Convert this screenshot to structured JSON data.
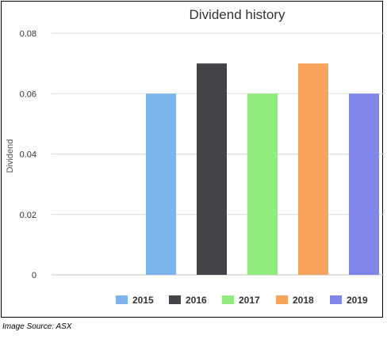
{
  "caption": "Image Source: ASX",
  "chart_data": {
    "type": "bar",
    "title": "Dividend history",
    "xlabel": "",
    "ylabel": "Dividend",
    "categories": [
      "2015",
      "2016",
      "2017",
      "2018",
      "2019"
    ],
    "values": [
      0.06,
      0.07,
      0.06,
      0.07,
      0.06
    ],
    "series": [
      {
        "name": "2015",
        "values": [
          0.06,
          null,
          null,
          null,
          null
        ],
        "color": "#7cb5ec"
      },
      {
        "name": "2016",
        "values": [
          null,
          0.07,
          null,
          null,
          null
        ],
        "color": "#434348"
      },
      {
        "name": "2017",
        "values": [
          null,
          null,
          0.06,
          null,
          null
        ],
        "color": "#90ed7d"
      },
      {
        "name": "2018",
        "values": [
          null,
          null,
          null,
          0.07,
          null
        ],
        "color": "#f7a35c"
      },
      {
        "name": "2019",
        "values": [
          null,
          null,
          null,
          null,
          0.06
        ],
        "color": "#8085e9"
      }
    ],
    "yticks": [
      "0",
      "0.02",
      "0.04",
      "0.06",
      "0.08"
    ],
    "ylim": [
      0,
      0.08
    ],
    "grid": true,
    "legend": "bottom"
  }
}
